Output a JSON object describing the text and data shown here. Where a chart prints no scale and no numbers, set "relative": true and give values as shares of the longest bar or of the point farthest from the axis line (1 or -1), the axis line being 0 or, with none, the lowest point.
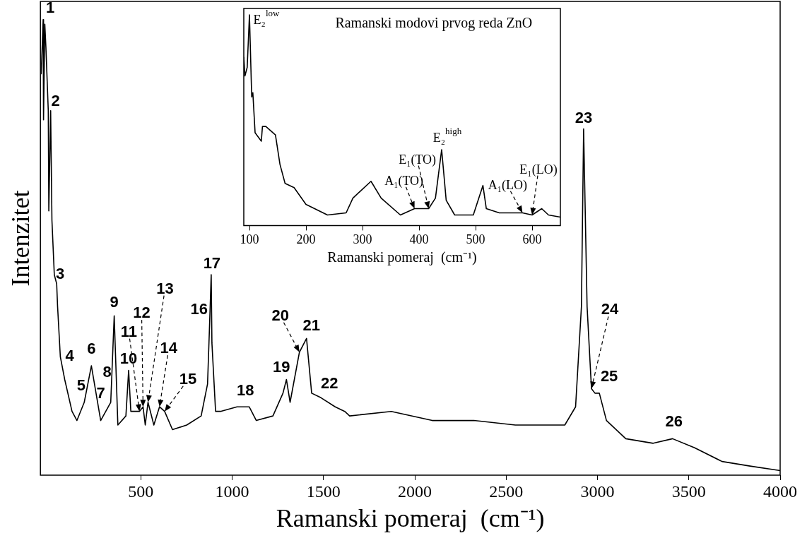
{
  "chart_data": [
    {
      "type": "line",
      "xlabel": "Ramanski pomeraj  (cm⁻¹)",
      "ylabel": "Intenzitet",
      "relative": true,
      "xlim": [
        -50,
        4000
      ],
      "xticks": [
        500,
        1000,
        1500,
        2000,
        2500,
        3000,
        3500,
        4000
      ],
      "legend": false,
      "x": [
        -46,
        -35,
        -33,
        -26,
        -20,
        -7,
        -4,
        6,
        13,
        26,
        39,
        44,
        59,
        83,
        123,
        150,
        190,
        229,
        280,
        335,
        354,
        374,
        418,
        433,
        445,
        492,
        512,
        524,
        539,
        571,
        602,
        630,
        673,
        751,
        830,
        865,
        877,
        885,
        889,
        909,
        936,
        1026,
        1093,
        1132,
        1223,
        1278,
        1297,
        1317,
        1368,
        1407,
        1435,
        1486,
        1564,
        1616,
        1643,
        1871,
        2095,
        2323,
        2550,
        2821,
        2880,
        2912,
        2924,
        2943,
        2967,
        2986,
        3010,
        3049,
        3155,
        3305,
        3411,
        3532,
        3682,
        3835,
        4000
      ],
      "series": [
        {
          "color": "#000000",
          "values": [
            0.88,
            1.0,
            0.78,
            0.99,
            0.94,
            0.8,
            0.58,
            0.8,
            0.56,
            0.44,
            0.42,
            0.37,
            0.26,
            0.21,
            0.14,
            0.12,
            0.16,
            0.24,
            0.12,
            0.16,
            0.35,
            0.11,
            0.13,
            0.23,
            0.14,
            0.14,
            0.15,
            0.11,
            0.16,
            0.11,
            0.15,
            0.14,
            0.1,
            0.11,
            0.13,
            0.2,
            0.34,
            0.44,
            0.29,
            0.14,
            0.14,
            0.15,
            0.15,
            0.12,
            0.13,
            0.18,
            0.21,
            0.16,
            0.27,
            0.3,
            0.18,
            0.17,
            0.15,
            0.14,
            0.13,
            0.14,
            0.12,
            0.12,
            0.11,
            0.11,
            0.15,
            0.37,
            0.76,
            0.37,
            0.19,
            0.18,
            0.18,
            0.12,
            0.08,
            0.07,
            0.08,
            0.06,
            0.03,
            0.02,
            0.01
          ]
        }
      ],
      "annotations": [
        {
          "text": "1",
          "x": -35,
          "y": 1.0
        },
        {
          "text": "2",
          "x": 6,
          "y": 0.8
        },
        {
          "text": "3",
          "x": 39,
          "y": 0.42
        },
        {
          "text": "4",
          "x": 83,
          "y": 0.21
        },
        {
          "text": "5",
          "x": 150,
          "y": 0.12
        },
        {
          "text": "6",
          "x": 229,
          "y": 0.24
        },
        {
          "text": "7",
          "x": 280,
          "y": 0.12
        },
        {
          "text": "8",
          "x": 335,
          "y": 0.16
        },
        {
          "text": "9",
          "x": 354,
          "y": 0.35
        },
        {
          "text": "10",
          "x": 433,
          "y": 0.23
        },
        {
          "text": "11",
          "x": 492,
          "y": 0.14
        },
        {
          "text": "12",
          "x": 512,
          "y": 0.15
        },
        {
          "text": "13",
          "x": 539,
          "y": 0.16
        },
        {
          "text": "14",
          "x": 602,
          "y": 0.15
        },
        {
          "text": "15",
          "x": 630,
          "y": 0.14
        },
        {
          "text": "16",
          "x": 877,
          "y": 0.34
        },
        {
          "text": "17",
          "x": 885,
          "y": 0.44
        },
        {
          "text": "18",
          "x": 1026,
          "y": 0.15
        },
        {
          "text": "19",
          "x": 1297,
          "y": 0.21
        },
        {
          "text": "20",
          "x": 1368,
          "y": 0.27
        },
        {
          "text": "21",
          "x": 1407,
          "y": 0.3
        },
        {
          "text": "22",
          "x": 1486,
          "y": 0.17
        },
        {
          "text": "23",
          "x": 2924,
          "y": 0.76
        },
        {
          "text": "24",
          "x": 2967,
          "y": 0.19
        },
        {
          "text": "25",
          "x": 3010,
          "y": 0.18
        },
        {
          "text": "26",
          "x": 3411,
          "y": 0.08
        }
      ]
    },
    {
      "type": "line",
      "title": "Ramanski modovi prvog reda ZnO",
      "xlabel": "Ramanski pomeraj  (cm⁻¹)",
      "relative": true,
      "xlim": [
        90,
        650
      ],
      "xticks": [
        100,
        200,
        300,
        400,
        500,
        600
      ],
      "legend": false,
      "x": [
        90,
        92,
        96,
        100,
        104,
        106,
        110,
        121,
        123,
        129,
        146,
        154,
        163,
        179,
        200,
        238,
        271,
        283,
        315,
        333,
        367,
        392,
        417,
        429,
        440,
        448,
        463,
        496,
        513,
        519,
        542,
        583,
        600,
        617,
        629,
        650
      ],
      "series": [
        {
          "color": "#000000",
          "values": [
            0.8,
            0.71,
            0.75,
            1.0,
            0.61,
            0.63,
            0.44,
            0.4,
            0.47,
            0.47,
            0.43,
            0.29,
            0.2,
            0.18,
            0.1,
            0.05,
            0.06,
            0.13,
            0.21,
            0.13,
            0.05,
            0.08,
            0.08,
            0.13,
            0.36,
            0.12,
            0.05,
            0.05,
            0.19,
            0.08,
            0.06,
            0.06,
            0.05,
            0.08,
            0.05,
            0.04
          ]
        }
      ],
      "annotations": [
        {
          "text": "E₂$^{low}$",
          "x": 100,
          "y": 1.0
        },
        {
          "text": "E₂$^{high}$",
          "x": 440,
          "y": 0.36
        },
        {
          "text": "E₁(TO)",
          "x": 417,
          "y": 0.08
        },
        {
          "text": "A₁(TO)",
          "x": 392,
          "y": 0.08
        },
        {
          "text": "A₁(LO)",
          "x": 583,
          "y": 0.06
        },
        {
          "text": "E₁(LO)",
          "x": 600,
          "y": 0.05
        }
      ]
    }
  ]
}
